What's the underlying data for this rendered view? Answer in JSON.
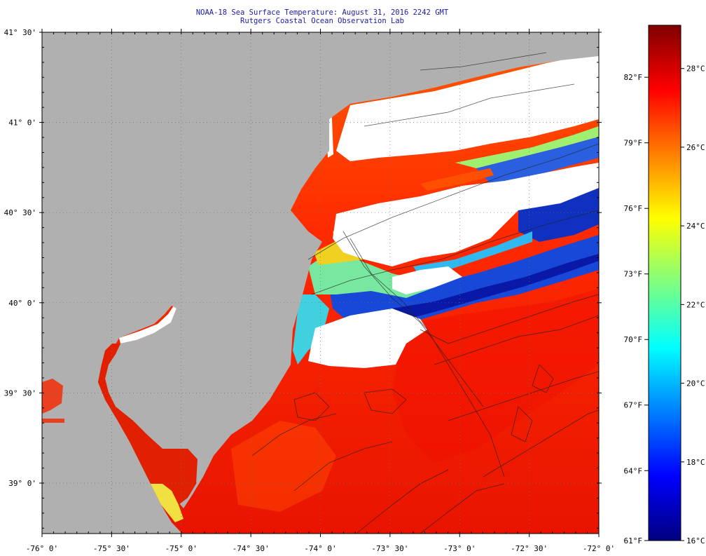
{
  "title": {
    "line1": "NOAA-18 Sea Surface Temperature:  August 31, 2016 2242 GMT",
    "line2": "Rutgers Coastal Ocean Observation Lab"
  },
  "map": {
    "lat_labels": [
      {
        "lat": 41.5,
        "label": "41° 30'"
      },
      {
        "lat": 41.0,
        "label": "41° 0'"
      },
      {
        "lat": 40.5,
        "label": "40° 30'"
      },
      {
        "lat": 40.0,
        "label": "40° 0'"
      },
      {
        "lat": 39.5,
        "label": "39° 30'"
      },
      {
        "lat": 39.0,
        "label": "39° 0'"
      }
    ],
    "lon_labels": [
      {
        "lon": -76.0,
        "label": "-76° 0'"
      },
      {
        "lon": -75.5,
        "label": "-75° 30'"
      },
      {
        "lon": -75.0,
        "label": "-75° 0'"
      },
      {
        "lon": -74.5,
        "label": "-74° 30'"
      },
      {
        "lon": -74.0,
        "label": "-74° 0'"
      },
      {
        "lon": -73.5,
        "label": "-73° 30'"
      },
      {
        "lon": -73.0,
        "label": "-73° 0'"
      },
      {
        "lon": -72.5,
        "label": "-72° 30'"
      },
      {
        "lon": -72.0,
        "label": "-72° 0'"
      }
    ],
    "lat_range": [
      38.72,
      41.5
    ],
    "lon_range": [
      -76.0,
      -72.0
    ],
    "colors": {
      "land": "#b0b0b0",
      "cloud": "#ffffff",
      "warm_water": "#ff3a00",
      "cold_water": "#1030c0"
    }
  },
  "colorbar": {
    "f_labels": [
      "82°F",
      "79°F",
      "76°F",
      "73°F",
      "70°F",
      "67°F",
      "64°F",
      "61°F"
    ],
    "c_labels": [
      "28°C",
      "26°C",
      "24°C",
      "22°C",
      "20°C",
      "18°C",
      "16°C"
    ],
    "f_values": [
      82,
      79,
      76,
      73,
      70,
      67,
      64,
      61
    ],
    "c_values": [
      28,
      26,
      24,
      22,
      20,
      18,
      16
    ],
    "c_min": 16,
    "c_max": 29.1,
    "colors": [
      "#00007f",
      "#0000ff",
      "#007fff",
      "#00ffff",
      "#7fff7f",
      "#ffff00",
      "#ff7f00",
      "#ff0000",
      "#7f0000"
    ]
  }
}
